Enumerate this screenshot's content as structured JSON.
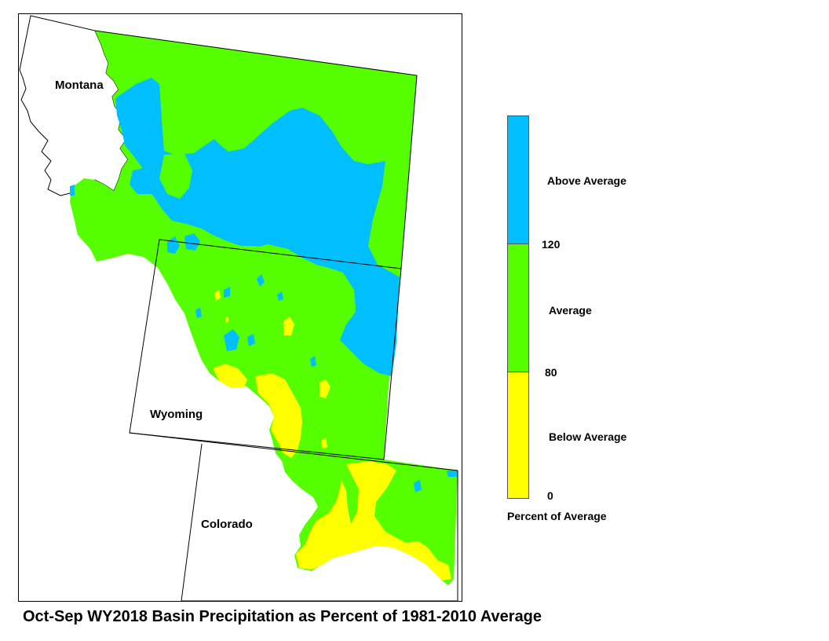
{
  "map": {
    "state_labels": {
      "montana": "Montana",
      "wyoming": "Wyoming",
      "colorado": "Colorado"
    },
    "colors": {
      "above": "#00BFFF",
      "average": "#55FF00",
      "below": "#FFFF00",
      "outside": "#FFFFFF",
      "border": "#000000"
    }
  },
  "legend": {
    "classes": [
      {
        "label": "Above Average",
        "color": "#00BFFF",
        "range": [
          120,
          null
        ]
      },
      {
        "label": "Average",
        "color": "#55FF00",
        "range": [
          80,
          120
        ]
      },
      {
        "label": "Below Average",
        "color": "#FFFF00",
        "range": [
          0,
          80
        ]
      }
    ],
    "break_labels": {
      "high": "120",
      "mid": "80",
      "low": "0"
    },
    "caption": "Percent of Average"
  },
  "title": "Oct-Sep WY2018 Basin Precipitation as Percent of 1981-2010 Average"
}
